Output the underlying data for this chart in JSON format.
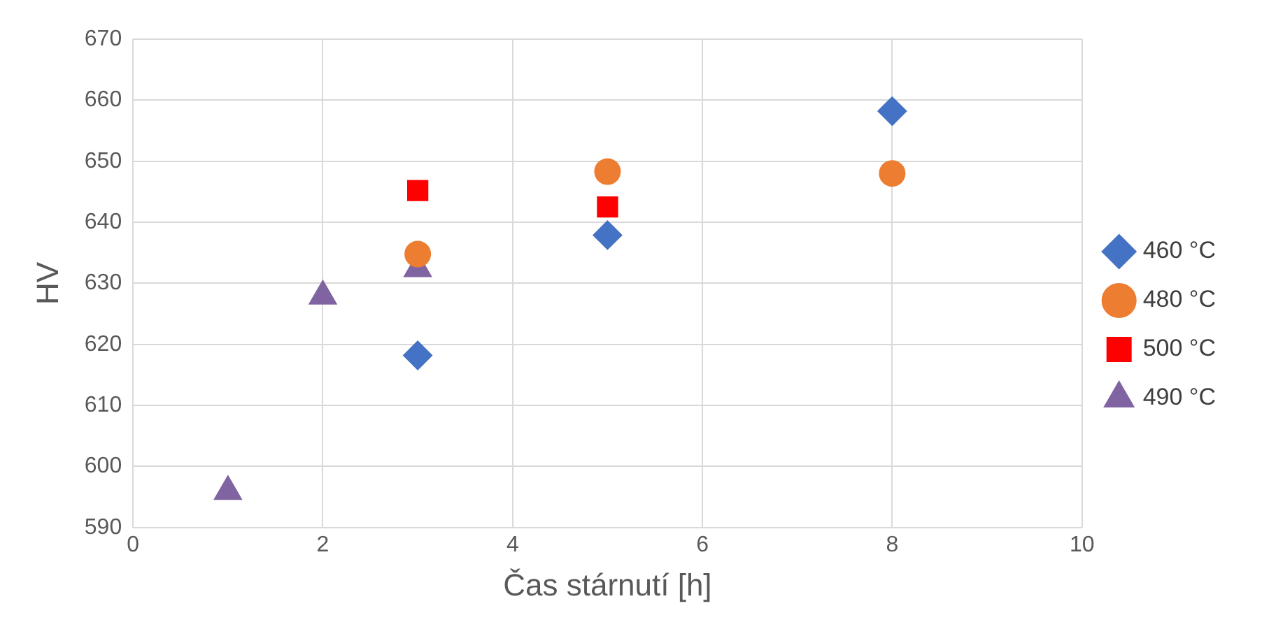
{
  "chart_data": {
    "type": "scatter",
    "xlabel": "Čas stárnutí [h]",
    "ylabel": "HV",
    "xlim": [
      0,
      10
    ],
    "xticks": [
      0,
      2,
      4,
      6,
      8,
      10
    ],
    "ylim": [
      590,
      670
    ],
    "yticks": [
      590,
      600,
      610,
      620,
      630,
      640,
      650,
      660,
      670
    ],
    "grid": true,
    "legend": "right",
    "series": [
      {
        "name": "460 °C",
        "color": "#4472c4",
        "marker": "diamond",
        "x": [
          3,
          5,
          8
        ],
        "values": [
          618.2,
          637.9,
          658.2
        ]
      },
      {
        "name": "480 °C",
        "color": "#ed7d31",
        "marker": "circle",
        "x": [
          3,
          5,
          8
        ],
        "values": [
          634.8,
          648.3,
          648.0
        ]
      },
      {
        "name": "500 °C",
        "color": "#ff0000",
        "marker": "square",
        "x": [
          3,
          5
        ],
        "values": [
          645.2,
          642.5
        ]
      },
      {
        "name": "490 °C",
        "color": "#8064a2",
        "marker": "triangle",
        "x": [
          1,
          2,
          3
        ],
        "values": [
          595.9,
          627.9,
          632.4
        ]
      }
    ]
  }
}
